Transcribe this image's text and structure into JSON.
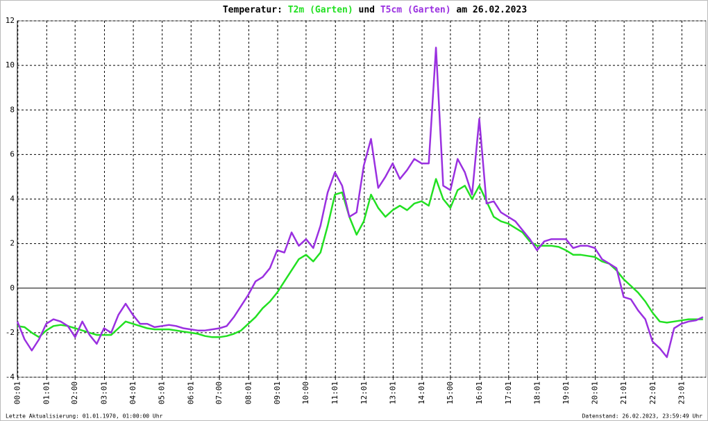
{
  "chart_data": {
    "type": "line",
    "title_prefix": "Temperatur:",
    "title_join": "und",
    "title_suffix": "am 26.02.2023",
    "footer_left": "Letzte Aktualisierung: 01.01.1970, 01:00:00 Uhr",
    "footer_right": "Datenstand: 26.02.2023, 23:59:49 Uhr",
    "x": [
      0,
      0.25,
      0.5,
      0.75,
      1,
      1.25,
      1.5,
      1.75,
      2,
      2.25,
      2.5,
      2.75,
      3,
      3.25,
      3.5,
      3.75,
      4,
      4.25,
      4.5,
      4.75,
      5,
      5.25,
      5.5,
      5.75,
      6,
      6.25,
      6.5,
      6.75,
      7,
      7.25,
      7.5,
      7.75,
      8,
      8.25,
      8.5,
      8.75,
      9,
      9.25,
      9.5,
      9.75,
      10,
      10.25,
      10.5,
      10.75,
      11,
      11.25,
      11.5,
      11.75,
      12,
      12.25,
      12.5,
      12.75,
      13,
      13.25,
      13.5,
      13.75,
      14,
      14.25,
      14.5,
      14.75,
      15,
      15.25,
      15.5,
      15.75,
      16,
      16.25,
      16.5,
      16.75,
      17,
      17.25,
      17.5,
      17.75,
      18,
      18.25,
      18.5,
      18.75,
      19,
      19.25,
      19.5,
      19.75,
      20,
      20.25,
      20.5,
      20.75,
      21,
      21.25,
      21.5,
      21.75,
      22,
      22.25,
      22.5,
      22.75,
      23,
      23.25,
      23.5,
      23.75
    ],
    "series": [
      {
        "name": "T2m (Garten)",
        "color": "#22e022",
        "values": [
          -1.7,
          -1.75,
          -2.0,
          -2.2,
          -1.9,
          -1.7,
          -1.65,
          -1.7,
          -1.8,
          -1.9,
          -2.0,
          -2.1,
          -2.1,
          -2.1,
          -1.8,
          -1.5,
          -1.6,
          -1.7,
          -1.8,
          -1.85,
          -1.85,
          -1.85,
          -1.9,
          -1.95,
          -2.0,
          -2.05,
          -2.15,
          -2.2,
          -2.2,
          -2.15,
          -2.05,
          -1.9,
          -1.6,
          -1.3,
          -0.9,
          -0.6,
          -0.2,
          0.3,
          0.8,
          1.3,
          1.5,
          1.2,
          1.6,
          2.8,
          4.2,
          4.3,
          3.2,
          2.4,
          3.0,
          4.2,
          3.6,
          3.2,
          3.5,
          3.7,
          3.5,
          3.8,
          3.9,
          3.7,
          4.9,
          4.0,
          3.6,
          4.4,
          4.6,
          4.0,
          4.6,
          3.9,
          3.2,
          3.0,
          2.9,
          2.7,
          2.5,
          2.1,
          1.9,
          1.9,
          1.9,
          1.85,
          1.7,
          1.5,
          1.5,
          1.45,
          1.4,
          1.2,
          1.1,
          0.8,
          0.4,
          0.1,
          -0.2,
          -0.6,
          -1.1,
          -1.5,
          -1.55,
          -1.5,
          -1.45,
          -1.4,
          -1.4,
          -1.4
        ]
      },
      {
        "name": "T5cm (Garten)",
        "color": "#9a30e0",
        "values": [
          -1.5,
          -2.3,
          -2.8,
          -2.3,
          -1.6,
          -1.4,
          -1.5,
          -1.7,
          -2.2,
          -1.5,
          -2.1,
          -2.5,
          -1.8,
          -2.0,
          -1.2,
          -0.7,
          -1.2,
          -1.6,
          -1.6,
          -1.75,
          -1.7,
          -1.65,
          -1.7,
          -1.8,
          -1.85,
          -1.9,
          -1.9,
          -1.85,
          -1.8,
          -1.7,
          -1.3,
          -0.8,
          -0.3,
          0.3,
          0.5,
          0.9,
          1.7,
          1.6,
          2.5,
          1.9,
          2.2,
          1.8,
          2.8,
          4.3,
          5.2,
          4.6,
          3.2,
          3.4,
          5.5,
          6.7,
          4.5,
          5.0,
          5.6,
          4.9,
          5.3,
          5.8,
          5.6,
          5.6,
          10.8,
          4.6,
          4.4,
          5.8,
          5.2,
          4.2,
          7.6,
          3.8,
          3.9,
          3.4,
          3.2,
          3.0,
          2.6,
          2.2,
          1.7,
          2.1,
          2.2,
          2.2,
          2.2,
          1.8,
          1.9,
          1.9,
          1.8,
          1.3,
          1.1,
          0.9,
          -0.4,
          -0.5,
          -1.0,
          -1.4,
          -2.4,
          -2.7,
          -3.1,
          -1.8,
          -1.6,
          -1.5,
          -1.45,
          -1.3
        ]
      }
    ],
    "xlim": [
      0,
      23.85
    ],
    "xticks": [
      {
        "value": 0.017,
        "label": "00:01"
      },
      {
        "value": 1.017,
        "label": "01:01"
      },
      {
        "value": 2.0,
        "label": "02:00"
      },
      {
        "value": 3.017,
        "label": "03:01"
      },
      {
        "value": 4.017,
        "label": "04:01"
      },
      {
        "value": 5.017,
        "label": "05:01"
      },
      {
        "value": 6.017,
        "label": "06:01"
      },
      {
        "value": 7.0,
        "label": "07:00"
      },
      {
        "value": 8.017,
        "label": "08:01"
      },
      {
        "value": 9.017,
        "label": "09:01"
      },
      {
        "value": 10.0,
        "label": "10:00"
      },
      {
        "value": 11.017,
        "label": "11:01"
      },
      {
        "value": 12.017,
        "label": "12:01"
      },
      {
        "value": 13.017,
        "label": "13:01"
      },
      {
        "value": 14.017,
        "label": "14:01"
      },
      {
        "value": 15.0,
        "label": "15:00"
      },
      {
        "value": 16.017,
        "label": "16:01"
      },
      {
        "value": 17.017,
        "label": "17:01"
      },
      {
        "value": 18.017,
        "label": "18:01"
      },
      {
        "value": 19.017,
        "label": "19:01"
      },
      {
        "value": 20.017,
        "label": "20:01"
      },
      {
        "value": 21.017,
        "label": "21:01"
      },
      {
        "value": 22.017,
        "label": "22:01"
      },
      {
        "value": 23.017,
        "label": "23:01"
      }
    ],
    "ylim": [
      -4,
      12
    ],
    "yticks": [
      -4,
      -2,
      0,
      2,
      4,
      6,
      8,
      10,
      12
    ],
    "grid": true
  }
}
